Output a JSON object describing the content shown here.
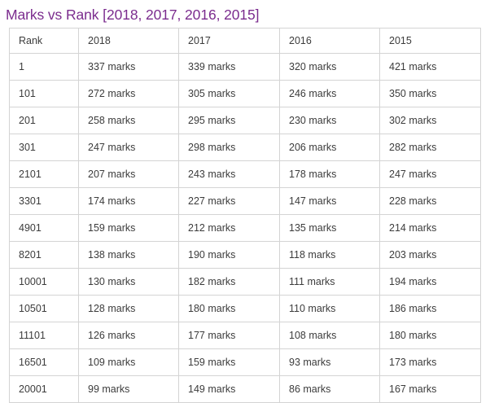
{
  "page": {
    "title": "Marks vs Rank [2018, 2017, 2016, 2015]"
  },
  "colors": {
    "title": "#7b2c8e",
    "text": "#3c3c3c",
    "border": "#d4d4d4"
  },
  "table": {
    "headers": [
      "Rank",
      "2018",
      "2017",
      "2016",
      "2015"
    ],
    "rows": [
      [
        "1",
        "337 marks",
        "339 marks",
        "320 marks",
        "421 marks"
      ],
      [
        "101",
        "272 marks",
        "305 marks",
        "246 marks",
        "350 marks"
      ],
      [
        "201",
        "258 marks",
        "295 marks",
        "230 marks",
        "302 marks"
      ],
      [
        "301",
        "247 marks",
        "298 marks",
        "206 marks",
        "282 marks"
      ],
      [
        "2101",
        "207 marks",
        "243 marks",
        "178 marks",
        "247 marks"
      ],
      [
        "3301",
        "174 marks",
        "227 marks",
        "147 marks",
        "228 marks"
      ],
      [
        "4901",
        "159 marks",
        "212 marks",
        "135 marks",
        "214 marks"
      ],
      [
        "8201",
        "138 marks",
        "190 marks",
        "118 marks",
        "203 marks"
      ],
      [
        "10001",
        "130 marks",
        "182 marks",
        "111 marks",
        "194 marks"
      ],
      [
        "10501",
        "128 marks",
        "180 marks",
        "110 marks",
        "186 marks"
      ],
      [
        "11101",
        "126 marks",
        "177 marks",
        "108 marks",
        "180 marks"
      ],
      [
        "16501",
        "109 marks",
        "159 marks",
        "93 marks",
        "173 marks"
      ],
      [
        "20001",
        "99 marks",
        "149 marks",
        "86 marks",
        "167 marks"
      ]
    ]
  }
}
